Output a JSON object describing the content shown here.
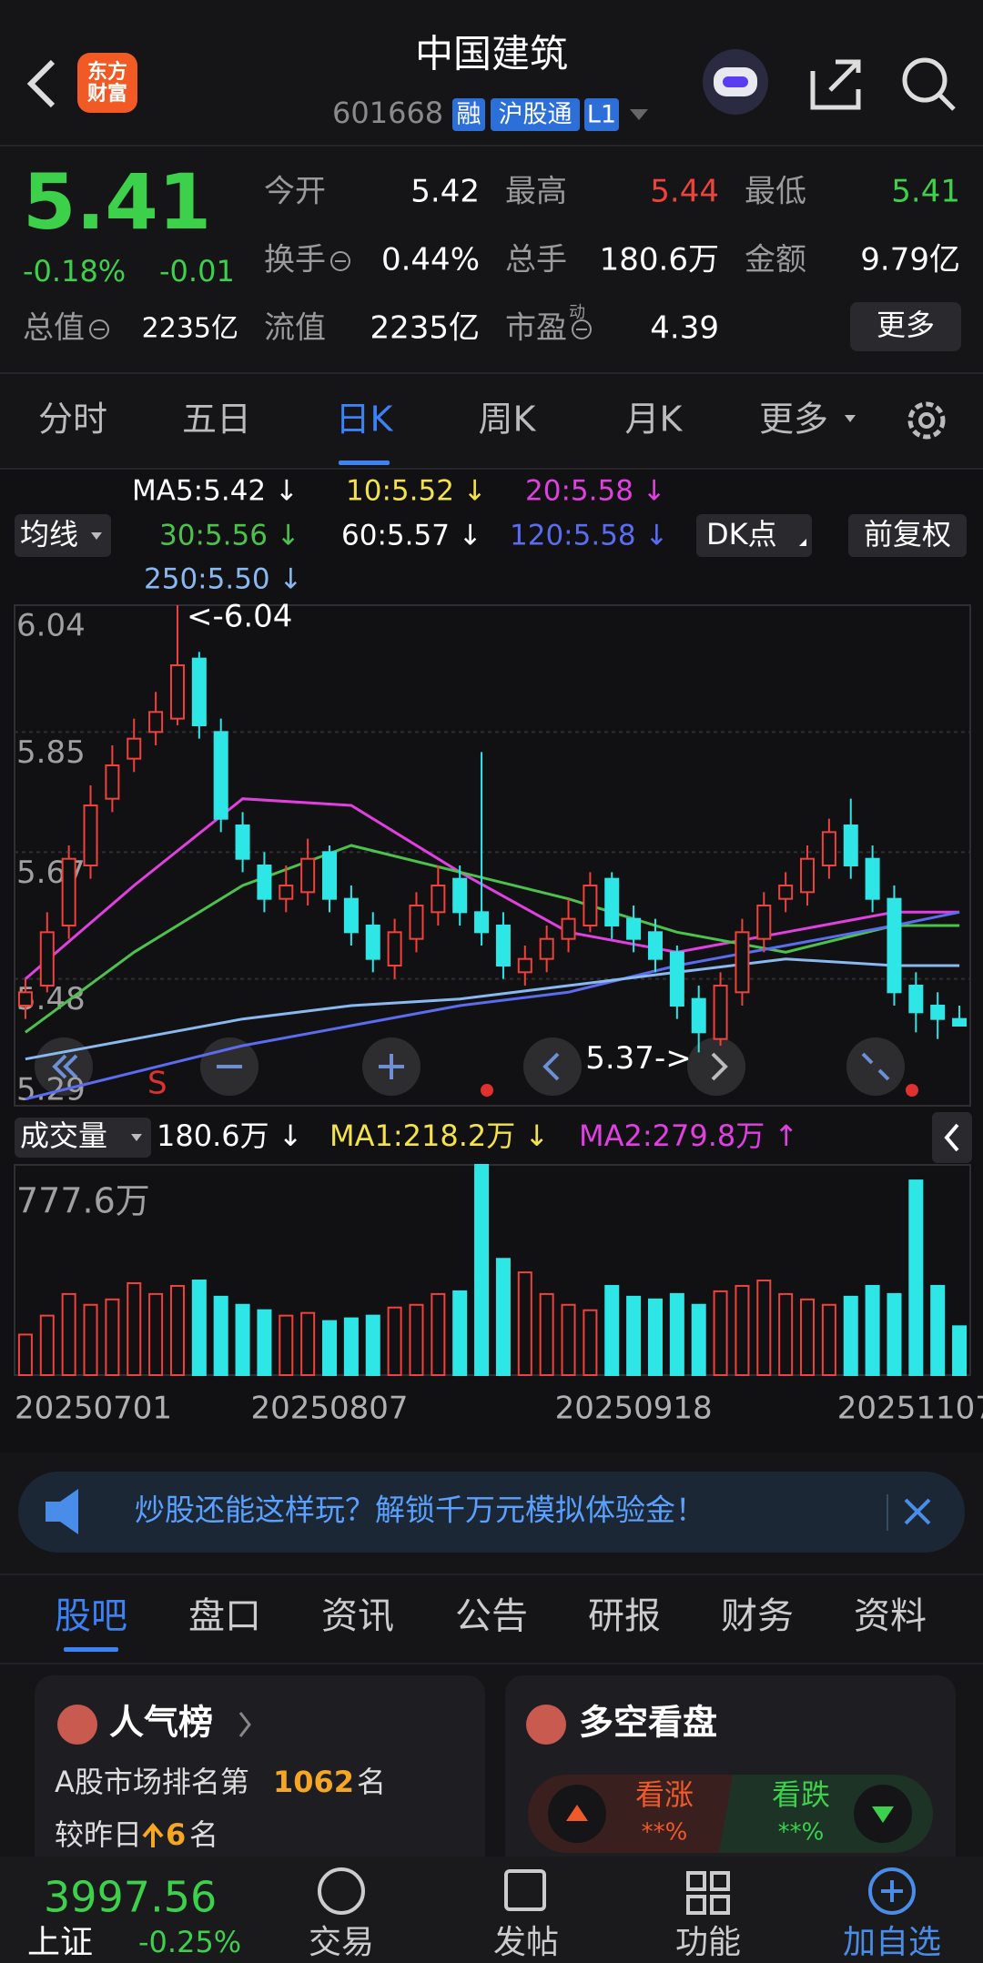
{
  "header": {
    "logo": [
      "东方",
      "财富"
    ],
    "title": "中国建筑",
    "code": "601668",
    "tags": [
      "融",
      "沪股通",
      "L1"
    ]
  },
  "quote": {
    "price": "5.41",
    "change_pct": "-0.18%",
    "change": "-0.01",
    "color": "#3dd14b",
    "fields": [
      {
        "label": "今开",
        "value": "5.42"
      },
      {
        "label": "最高",
        "value": "5.44",
        "color": "#f0413b"
      },
      {
        "label": "最低",
        "value": "5.41",
        "color": "#3dd14b"
      },
      {
        "label": "换手",
        "value": "0.44%"
      },
      {
        "label": "总手",
        "value": "180.6万"
      },
      {
        "label": "金额",
        "value": "9.79亿"
      },
      {
        "label": "总值",
        "value": "2235亿"
      },
      {
        "label": "流值",
        "value": "2235亿"
      },
      {
        "label": "市盈",
        "sup": "动",
        "value": "4.39"
      }
    ],
    "more": "更多"
  },
  "tabs": {
    "items": [
      "分时",
      "五日",
      "日K",
      "周K",
      "月K",
      "更多"
    ],
    "active": 2
  },
  "chart_data": {
    "type": "candlestick",
    "ma_button": "均线",
    "dk_button": "DK点",
    "adjust_button": "前复权",
    "ma": [
      {
        "name": "MA5:5.42 ↓",
        "color": "#ffffff"
      },
      {
        "name": "10:5.52 ↓",
        "color": "#f3e24b"
      },
      {
        "name": "20:5.58 ↓",
        "color": "#e040e0",
        "x": [
          0,
          5,
          10,
          15,
          20,
          25,
          30,
          35,
          40,
          43
        ],
        "values": [
          5.48,
          5.62,
          5.75,
          5.74,
          5.64,
          5.55,
          5.52,
          5.55,
          5.58,
          5.58
        ]
      },
      {
        "name": "30:5.56 ↓",
        "color": "#4cc24c",
        "x": [
          0,
          5,
          10,
          15,
          20,
          25,
          30,
          35,
          40,
          43
        ],
        "values": [
          5.4,
          5.52,
          5.62,
          5.68,
          5.64,
          5.6,
          5.55,
          5.52,
          5.56,
          5.56
        ]
      },
      {
        "name": "60:5.57 ↓",
        "color": "#ffffff"
      },
      {
        "name": "120:5.58 ↓",
        "color": "#5b6cf0",
        "x": [
          0,
          5,
          10,
          15,
          20,
          25,
          30,
          35,
          40,
          43
        ],
        "values": [
          5.3,
          5.34,
          5.38,
          5.41,
          5.44,
          5.46,
          5.5,
          5.53,
          5.56,
          5.58
        ]
      },
      {
        "name": "250:5.50 ↓",
        "color": "#8ab8f0",
        "x": [
          0,
          5,
          10,
          15,
          20,
          25,
          30,
          35,
          40,
          43
        ],
        "values": [
          5.36,
          5.39,
          5.42,
          5.44,
          5.45,
          5.47,
          5.49,
          5.51,
          5.5,
          5.5
        ]
      }
    ],
    "up_color": "#f0413b",
    "down_color": "#2ee6e6",
    "ylim": [
      5.29,
      6.04
    ],
    "yticks": [
      6.04,
      5.85,
      5.67,
      5.48,
      5.29
    ],
    "max_label": "<-6.04",
    "min_label": "5.37->",
    "categories": [
      "20250701",
      null,
      null,
      null,
      null,
      null,
      null,
      null,
      null,
      null,
      null,
      null,
      null,
      null,
      "20250807",
      null,
      null,
      null,
      null,
      null,
      null,
      null,
      null,
      null,
      null,
      null,
      null,
      null,
      "20250918",
      null,
      null,
      null,
      null,
      null,
      null,
      null,
      null,
      null,
      null,
      null,
      null,
      "20251107",
      null,
      null
    ],
    "open": [
      5.44,
      5.47,
      5.56,
      5.65,
      5.75,
      5.81,
      5.85,
      5.87,
      5.96,
      5.85,
      5.71,
      5.65,
      5.6,
      5.61,
      5.67,
      5.6,
      5.56,
      5.5,
      5.54,
      5.58,
      5.63,
      5.58,
      5.56,
      5.49,
      5.51,
      5.54,
      5.56,
      5.63,
      5.57,
      5.55,
      5.52,
      5.45,
      5.39,
      5.46,
      5.54,
      5.6,
      5.61,
      5.65,
      5.71,
      5.66,
      5.6,
      5.47,
      5.44,
      5.42
    ],
    "high": [
      5.48,
      5.58,
      5.68,
      5.77,
      5.83,
      5.87,
      5.91,
      6.04,
      5.97,
      5.87,
      5.73,
      5.67,
      5.65,
      5.69,
      5.68,
      5.62,
      5.58,
      5.57,
      5.61,
      5.65,
      5.65,
      5.82,
      5.58,
      5.53,
      5.56,
      5.6,
      5.64,
      5.64,
      5.59,
      5.57,
      5.53,
      5.47,
      5.49,
      5.57,
      5.61,
      5.64,
      5.68,
      5.72,
      5.75,
      5.68,
      5.62,
      5.49,
      5.46,
      5.44
    ],
    "low": [
      5.42,
      5.46,
      5.54,
      5.63,
      5.73,
      5.79,
      5.83,
      5.86,
      5.84,
      5.7,
      5.64,
      5.58,
      5.58,
      5.59,
      5.58,
      5.53,
      5.49,
      5.48,
      5.52,
      5.56,
      5.56,
      5.53,
      5.48,
      5.47,
      5.49,
      5.52,
      5.55,
      5.54,
      5.52,
      5.49,
      5.42,
      5.37,
      5.38,
      5.44,
      5.52,
      5.58,
      5.59,
      5.63,
      5.63,
      5.58,
      5.44,
      5.4,
      5.39,
      5.41
    ],
    "close": [
      5.46,
      5.55,
      5.66,
      5.74,
      5.8,
      5.84,
      5.88,
      5.95,
      5.86,
      5.72,
      5.66,
      5.6,
      5.62,
      5.66,
      5.6,
      5.55,
      5.51,
      5.55,
      5.59,
      5.62,
      5.58,
      5.55,
      5.5,
      5.51,
      5.54,
      5.57,
      5.62,
      5.56,
      5.54,
      5.51,
      5.44,
      5.4,
      5.47,
      5.55,
      5.59,
      5.62,
      5.66,
      5.7,
      5.65,
      5.6,
      5.46,
      5.43,
      5.42,
      5.41
    ],
    "volume": {
      "title": "成交量",
      "current": "180.6万 ↓",
      "ma": [
        {
          "name": "MA1:218.2万 ↓",
          "color": "#f3e24b"
        },
        {
          "name": "MA2:279.8万 ↑",
          "color": "#e040e0"
        }
      ],
      "ylim": [
        0,
        777.6
      ],
      "yticks": [
        {
          "value": 777.6,
          "label": "777.6万"
        }
      ],
      "values": [
        150,
        220,
        300,
        260,
        280,
        340,
        300,
        330,
        350,
        290,
        260,
        240,
        220,
        230,
        200,
        210,
        220,
        250,
        260,
        300,
        310,
        777.6,
        430,
        380,
        300,
        260,
        240,
        330,
        290,
        280,
        300,
        260,
        310,
        330,
        350,
        300,
        280,
        260,
        290,
        330,
        300,
        720,
        330,
        180.6
      ]
    }
  },
  "ad": {
    "text": "炒股还能这样玩？解锁千万元模拟体验金！"
  },
  "section_tabs": {
    "items": [
      "股吧",
      "盘口",
      "资讯",
      "公告",
      "研报",
      "财务",
      "资料"
    ],
    "active": 0
  },
  "cards": {
    "rank": {
      "title": "人气榜",
      "line1": [
        "A股市场排名第",
        "1062",
        "名"
      ],
      "line2": [
        "较昨日",
        "6",
        "名"
      ]
    },
    "sentiment": {
      "title": "多空看盘",
      "bull": "看涨",
      "bull_value": "**%",
      "bear": "看跌",
      "bear_value": "**%"
    }
  },
  "nav": {
    "index_value": "3997.56",
    "index_name": "上证",
    "index_change": "-0.25%",
    "items": [
      "交易",
      "发帖",
      "功能",
      "加自选"
    ]
  }
}
